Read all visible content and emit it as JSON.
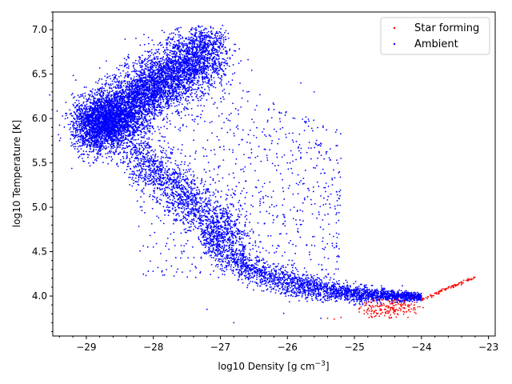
{
  "chart_data": {
    "type": "scatter",
    "xlabel": "log10 Density [g cm",
    "xlabel_exponent": "−3",
    "xlabel_close": "]",
    "ylabel": "log10 Temperature [K]",
    "xlim": [
      -29.5,
      -22.9
    ],
    "ylim": [
      3.55,
      7.2
    ],
    "x_ticks": [
      -29,
      -28,
      -27,
      -26,
      -25,
      -24,
      -23
    ],
    "x_tick_labels": [
      "−29",
      "−28",
      "−27",
      "−26",
      "−25",
      "−24",
      "−23"
    ],
    "y_ticks": [
      4.0,
      4.5,
      5.0,
      5.5,
      6.0,
      6.5,
      7.0
    ],
    "y_tick_labels": [
      "4.0",
      "4.5",
      "5.0",
      "5.5",
      "6.0",
      "6.5",
      "7.0"
    ],
    "grid": false,
    "legend_position": "top-right",
    "series": [
      {
        "name": "Star forming",
        "color": "#ff0000",
        "marker": "small-dot",
        "points": [
          [
            -25.4,
            3.75
          ],
          [
            -25.3,
            3.74
          ],
          [
            -25.2,
            3.76
          ],
          [
            -24.9,
            3.88
          ],
          [
            -24.8,
            3.85
          ],
          [
            -24.7,
            3.82
          ],
          [
            -24.6,
            3.8
          ],
          [
            -24.55,
            3.78
          ],
          [
            -24.5,
            3.83
          ],
          [
            -24.45,
            3.87
          ],
          [
            -24.4,
            3.8
          ],
          [
            -24.35,
            3.84
          ],
          [
            -24.3,
            3.88
          ],
          [
            -24.25,
            3.86
          ],
          [
            -24.2,
            3.9
          ],
          [
            -24.6,
            3.92
          ],
          [
            -24.5,
            3.95
          ],
          [
            -24.4,
            3.93
          ],
          [
            -24.3,
            3.92
          ],
          [
            -24.1,
            3.93
          ],
          [
            -24.0,
            3.96
          ],
          [
            -23.9,
            3.99
          ],
          [
            -23.8,
            4.03
          ],
          [
            -23.7,
            4.07
          ],
          [
            -23.6,
            4.1
          ],
          [
            -23.5,
            4.13
          ],
          [
            -23.4,
            4.16
          ],
          [
            -23.3,
            4.18
          ],
          [
            -23.2,
            4.21
          ],
          [
            -24.45,
            3.76
          ],
          [
            -24.35,
            3.79
          ],
          [
            -24.55,
            3.85
          ],
          [
            -24.65,
            3.88
          ],
          [
            -24.75,
            3.8
          ],
          [
            -24.15,
            3.91
          ]
        ]
      },
      {
        "name": "Ambient",
        "color": "#0000ff",
        "marker": "small-dot",
        "points": [
          [
            -29.2,
            5.85
          ],
          [
            -29.0,
            5.8
          ],
          [
            -28.8,
            5.7
          ],
          [
            -28.6,
            5.62
          ],
          [
            -28.4,
            5.55
          ],
          [
            -28.2,
            5.5
          ],
          [
            -28.0,
            5.42
          ],
          [
            -27.9,
            5.2
          ],
          [
            -27.8,
            5.0
          ],
          [
            -27.6,
            4.85
          ],
          [
            -27.4,
            4.75
          ],
          [
            -27.2,
            4.65
          ],
          [
            -27.0,
            4.55
          ],
          [
            -26.8,
            4.45
          ],
          [
            -26.6,
            4.35
          ],
          [
            -26.4,
            4.28
          ],
          [
            -26.2,
            4.22
          ],
          [
            -26.0,
            4.18
          ],
          [
            -25.8,
            4.14
          ],
          [
            -25.6,
            4.1
          ],
          [
            -25.4,
            4.07
          ],
          [
            -25.2,
            4.04
          ],
          [
            -25.0,
            4.02
          ],
          [
            -24.8,
            4.0
          ],
          [
            -24.6,
            3.98
          ],
          [
            -24.4,
            3.96
          ],
          [
            -24.2,
            3.95
          ],
          [
            -24.0,
            3.96
          ],
          [
            -28.5,
            6.2
          ],
          [
            -28.2,
            6.4
          ],
          [
            -28.0,
            6.6
          ],
          [
            -27.8,
            6.8
          ],
          [
            -27.6,
            6.85
          ],
          [
            -27.4,
            6.9
          ],
          [
            -27.3,
            7.03
          ],
          [
            -27.0,
            6.6
          ],
          [
            -26.6,
            6.3
          ],
          [
            -26.2,
            6.1
          ],
          [
            -25.8,
            6.4
          ],
          [
            -25.6,
            6.3
          ],
          [
            -26.0,
            5.5
          ],
          [
            -25.9,
            5.0
          ],
          [
            -26.8,
            3.7
          ],
          [
            -27.2,
            3.85
          ],
          [
            -25.5,
            3.75
          ]
        ]
      }
    ]
  }
}
